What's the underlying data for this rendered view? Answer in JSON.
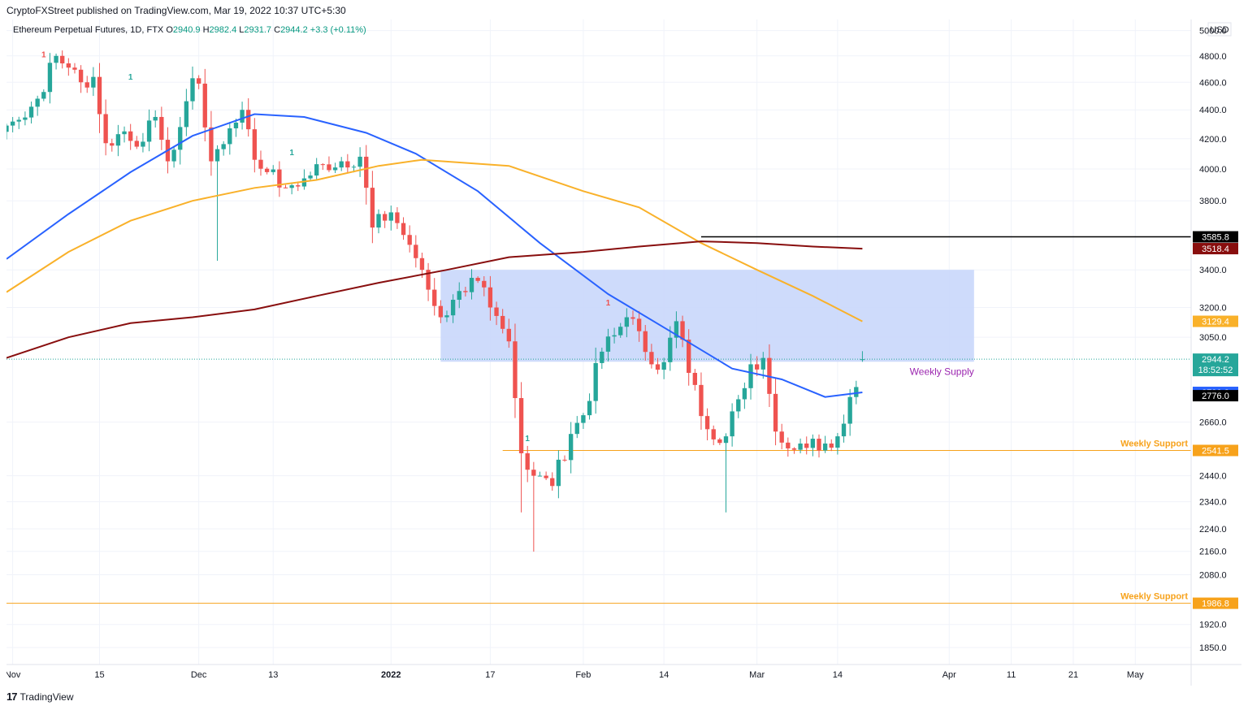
{
  "header": {
    "publisher_line": "CryptoFXStreet published on TradingView.com, Mar 19, 2022 10:37 UTC+5:30",
    "symbol": "Ethereum Perpetual Futures, 1D, FTX",
    "ohlc_open_label": "O",
    "ohlc_open": "2940.9",
    "ohlc_high_label": "H",
    "ohlc_high": "2982.4",
    "ohlc_low_label": "L",
    "ohlc_low": "2931.7",
    "ohlc_close_label": "C",
    "ohlc_close": "2944.2",
    "ohlc_change": "+3.3 (+0.11%)"
  },
  "footer": {
    "logo_text": "TradingView",
    "logo_mark": "17"
  },
  "colors": {
    "bull": "#26a69a",
    "bear": "#ef5350",
    "ma_fast": "#2962ff",
    "ma_mid": "#f9b12a",
    "ma_slow": "#880e0e",
    "resistance": "#000000",
    "support": "#f7a21b",
    "supply_zone": "#c9d7fb",
    "price_line": "#26a69a"
  },
  "chart_data": {
    "type": "candlestick",
    "y_axis": {
      "unit": "USD",
      "scale": "log",
      "range": [
        1800,
        5050
      ],
      "ticks": [
        "5000.0",
        "4800.0",
        "4600.0",
        "4400.0",
        "4200.0",
        "4000.0",
        "3800.0",
        "3400.0",
        "3200.0",
        "3050.0",
        "2660.0",
        "2440.0",
        "2340.0",
        "2240.0",
        "2160.0",
        "2080.0",
        "1920.0",
        "1850.0"
      ]
    },
    "x_axis": {
      "range": [
        "2021-10-31",
        "2022-05-10"
      ],
      "ticks": [
        {
          "label": "Nov",
          "date": "2021-11-01",
          "bold": false
        },
        {
          "label": "15",
          "date": "2021-11-15",
          "bold": false
        },
        {
          "label": "Dec",
          "date": "2021-12-01",
          "bold": false
        },
        {
          "label": "13",
          "date": "2021-12-13",
          "bold": false
        },
        {
          "label": "2022",
          "date": "2022-01-01",
          "bold": true
        },
        {
          "label": "17",
          "date": "2022-01-17",
          "bold": false
        },
        {
          "label": "Feb",
          "date": "2022-02-01",
          "bold": false
        },
        {
          "label": "14",
          "date": "2022-02-14",
          "bold": false
        },
        {
          "label": "Mar",
          "date": "2022-03-01",
          "bold": false
        },
        {
          "label": "14",
          "date": "2022-03-14",
          "bold": false
        },
        {
          "label": "Apr",
          "date": "2022-04-01",
          "bold": false
        },
        {
          "label": "11",
          "date": "2022-04-11",
          "bold": false
        },
        {
          "label": "21",
          "date": "2022-04-21",
          "bold": false
        },
        {
          "label": "May",
          "date": "2022-05-01",
          "bold": false
        }
      ]
    },
    "close_anchors": [
      [
        "2021-10-31",
        4290
      ],
      [
        "2021-11-02",
        4330
      ],
      [
        "2021-11-05",
        4480
      ],
      [
        "2021-11-08",
        4800
      ],
      [
        "2021-11-10",
        4710
      ],
      [
        "2021-11-12",
        4600
      ],
      [
        "2021-11-14",
        4640
      ],
      [
        "2021-11-16",
        4170
      ],
      [
        "2021-11-19",
        4250
      ],
      [
        "2021-11-22",
        4180
      ],
      [
        "2021-11-24",
        4350
      ],
      [
        "2021-11-26",
        4050
      ],
      [
        "2021-11-28",
        4280
      ],
      [
        "2021-11-30",
        4630
      ],
      [
        "2021-12-01",
        4590
      ],
      [
        "2021-12-03",
        4050
      ],
      [
        "2021-12-04",
        4130
      ],
      [
        "2021-12-08",
        4400
      ],
      [
        "2021-12-10",
        4060
      ],
      [
        "2021-12-12",
        3980
      ],
      [
        "2021-12-15",
        3880
      ],
      [
        "2021-12-18",
        3940
      ],
      [
        "2021-12-21",
        4030
      ],
      [
        "2021-12-24",
        4050
      ],
      [
        "2021-12-27",
        4080
      ],
      [
        "2021-12-29",
        3640
      ],
      [
        "2022-01-01",
        3730
      ],
      [
        "2022-01-04",
        3540
      ],
      [
        "2022-01-06",
        3400
      ],
      [
        "2022-01-09",
        3150
      ],
      [
        "2022-01-11",
        3240
      ],
      [
        "2022-01-13",
        3280
      ],
      [
        "2022-01-15",
        3340
      ],
      [
        "2022-01-17",
        3200
      ],
      [
        "2022-01-20",
        3030
      ],
      [
        "2022-01-22",
        2530
      ],
      [
        "2022-01-24",
        2440
      ],
      [
        "2022-01-27",
        2400
      ],
      [
        "2022-01-30",
        2610
      ],
      [
        "2022-02-01",
        2690
      ],
      [
        "2022-02-04",
        2980
      ],
      [
        "2022-02-06",
        3060
      ],
      [
        "2022-02-08",
        3150
      ],
      [
        "2022-02-10",
        3080
      ],
      [
        "2022-02-12",
        2920
      ],
      [
        "2022-02-14",
        2930
      ],
      [
        "2022-02-16",
        3130
      ],
      [
        "2022-02-18",
        2880
      ],
      [
        "2022-02-21",
        2630
      ],
      [
        "2022-02-24",
        2600
      ],
      [
        "2022-02-26",
        2760
      ],
      [
        "2022-02-28",
        2920
      ],
      [
        "2022-03-02",
        2950
      ],
      [
        "2022-03-04",
        2620
      ],
      [
        "2022-03-06",
        2550
      ],
      [
        "2022-03-08",
        2570
      ],
      [
        "2022-03-10",
        2590
      ],
      [
        "2022-03-12",
        2570
      ],
      [
        "2022-03-14",
        2600
      ],
      [
        "2022-03-16",
        2770
      ],
      [
        "2022-03-17",
        2815
      ],
      [
        "2022-03-18",
        2944
      ]
    ],
    "extreme_wicks": [
      {
        "date": "2021-12-04",
        "low": 3450
      },
      {
        "date": "2022-01-24",
        "low": 2159
      },
      {
        "date": "2022-01-22",
        "low": 2300
      },
      {
        "date": "2022-02-24",
        "low": 2300
      }
    ],
    "last_candle": {
      "date": "2022-03-18",
      "open": 2940.9,
      "high": 2982.4,
      "low": 2931.7,
      "close": 2944.2
    },
    "moving_averages": [
      {
        "color_key": "ma_fast",
        "value": 2790.8,
        "value_label": "2790.8",
        "anchors": [
          [
            "2021-10-31",
            3460
          ],
          [
            "2021-11-10",
            3720
          ],
          [
            "2021-11-20",
            3980
          ],
          [
            "2021-11-30",
            4220
          ],
          [
            "2021-12-10",
            4370
          ],
          [
            "2021-12-18",
            4350
          ],
          [
            "2021-12-28",
            4240
          ],
          [
            "2022-01-05",
            4100
          ],
          [
            "2022-01-15",
            3860
          ],
          [
            "2022-01-25",
            3550
          ],
          [
            "2022-02-05",
            3270
          ],
          [
            "2022-02-15",
            3080
          ],
          [
            "2022-02-25",
            2900
          ],
          [
            "2022-03-05",
            2850
          ],
          [
            "2022-03-12",
            2770
          ],
          [
            "2022-03-18",
            2791
          ]
        ]
      },
      {
        "color_key": "ma_mid",
        "value": 3129.4,
        "value_label": "3129.4",
        "anchors": [
          [
            "2021-10-31",
            3280
          ],
          [
            "2021-11-10",
            3500
          ],
          [
            "2021-11-20",
            3680
          ],
          [
            "2021-11-30",
            3800
          ],
          [
            "2021-12-10",
            3880
          ],
          [
            "2021-12-20",
            3930
          ],
          [
            "2021-12-30",
            4020
          ],
          [
            "2022-01-06",
            4060
          ],
          [
            "2022-01-20",
            4020
          ],
          [
            "2022-02-01",
            3860
          ],
          [
            "2022-02-10",
            3760
          ],
          [
            "2022-02-20",
            3550
          ],
          [
            "2022-03-01",
            3400
          ],
          [
            "2022-03-10",
            3260
          ],
          [
            "2022-03-18",
            3129
          ]
        ]
      },
      {
        "color_key": "ma_slow",
        "value": 3518.4,
        "value_label": "3518.4",
        "anchors": [
          [
            "2021-10-31",
            2950
          ],
          [
            "2021-11-10",
            3050
          ],
          [
            "2021-11-20",
            3120
          ],
          [
            "2021-11-30",
            3150
          ],
          [
            "2021-12-10",
            3190
          ],
          [
            "2021-12-20",
            3260
          ],
          [
            "2021-12-30",
            3330
          ],
          [
            "2022-01-10",
            3400
          ],
          [
            "2022-01-20",
            3470
          ],
          [
            "2022-02-01",
            3500
          ],
          [
            "2022-02-10",
            3530
          ],
          [
            "2022-02-20",
            3560
          ],
          [
            "2022-03-01",
            3550
          ],
          [
            "2022-03-10",
            3530
          ],
          [
            "2022-03-18",
            3518
          ]
        ]
      }
    ],
    "horizontal_levels": [
      {
        "price": 3585.8,
        "label": "3585.8",
        "color_key": "resistance",
        "from": "2022-02-20"
      },
      {
        "price": 2541.5,
        "label": "2541.5",
        "color_key": "support",
        "from": "2022-01-19",
        "annotation": "Weekly Support"
      },
      {
        "price": 1986.8,
        "label": "1986.8",
        "color_key": "support",
        "from": "2021-10-31",
        "annotation": "Weekly Support"
      }
    ],
    "supply_zone": {
      "from": "2022-01-09",
      "to": "2022-04-05",
      "low": 2932,
      "high": 3400,
      "label": "Weekly Supply"
    },
    "price_badges": [
      {
        "price": 2944.2,
        "label": "2944.2",
        "sublabel": "18:52:52",
        "color_key": "bull"
      },
      {
        "price": 2776.0,
        "label": "2776.0",
        "color_key": "resistance"
      }
    ],
    "signal_marks": [
      {
        "date": "2021-11-06",
        "text": "1",
        "color_key": "bear",
        "price": 4790
      },
      {
        "date": "2021-11-20",
        "text": "1",
        "color_key": "bull",
        "price": 4620
      },
      {
        "date": "2021-12-16",
        "text": "1",
        "color_key": "bull",
        "price": 4090
      },
      {
        "date": "2022-01-23",
        "text": "1",
        "color_key": "bull",
        "price": 2580
      },
      {
        "date": "2022-02-05",
        "text": "1",
        "color_key": "bear",
        "price": 3210
      }
    ]
  }
}
